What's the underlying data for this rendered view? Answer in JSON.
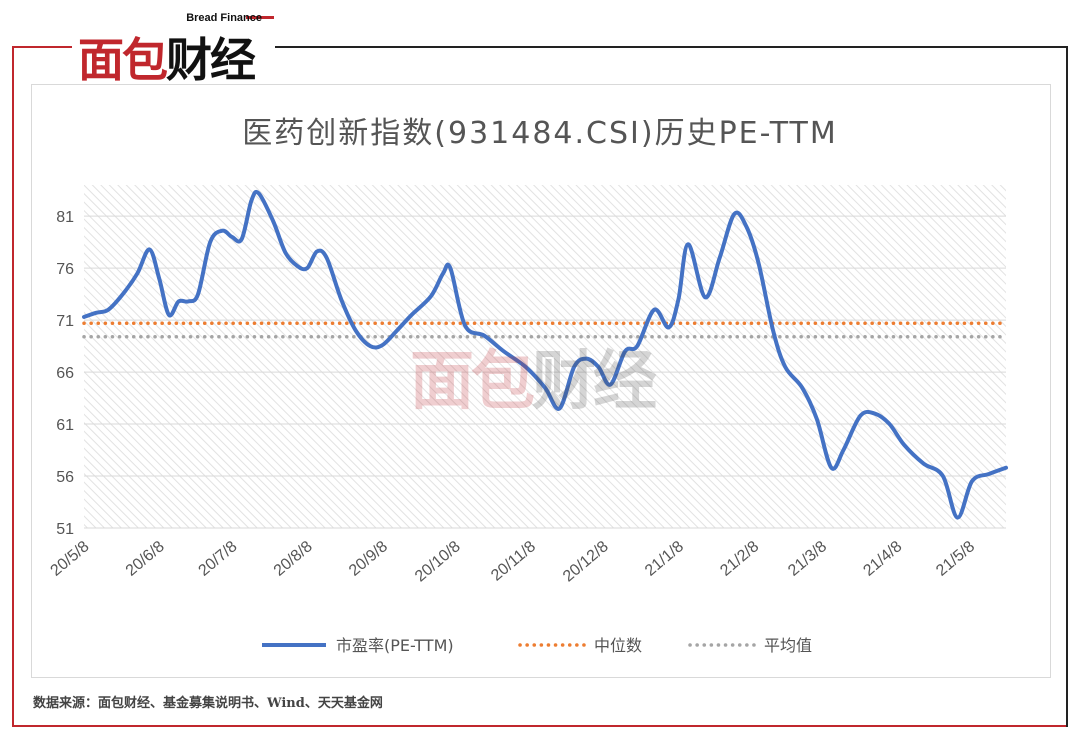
{
  "brand": {
    "logo_red": "面包",
    "logo_dark": "财经",
    "subtitle": "Bread Finance"
  },
  "chart_data": {
    "type": "line",
    "title": "医药创新指数(931484.CSI)历史PE-TTM",
    "ylim": [
      51,
      84
    ],
    "y_ticks": [
      51,
      56,
      61,
      66,
      71,
      76,
      81
    ],
    "x_ticks": [
      "20/5/8",
      "20/6/8",
      "20/7/8",
      "20/8/8",
      "20/9/8",
      "20/10/8",
      "20/11/8",
      "20/12/8",
      "21/1/8",
      "21/2/8",
      "21/3/8",
      "21/4/8",
      "21/5/8"
    ],
    "grid": true,
    "legend_position": "bottom",
    "series": [
      {
        "name": "市盈率(PE-TTM)",
        "style": "solid",
        "color": "#4472c4",
        "points": [
          [
            "2020-05-08",
            71.3
          ],
          [
            "2020-05-13",
            71.7
          ],
          [
            "2020-05-18",
            72.0
          ],
          [
            "2020-05-24",
            73.5
          ],
          [
            "2020-05-30",
            75.5
          ],
          [
            "2020-06-04",
            77.8
          ],
          [
            "2020-06-08",
            75.0
          ],
          [
            "2020-06-12",
            71.5
          ],
          [
            "2020-06-16",
            72.8
          ],
          [
            "2020-06-20",
            72.8
          ],
          [
            "2020-06-24",
            73.5
          ],
          [
            "2020-06-29",
            78.5
          ],
          [
            "2020-07-04",
            79.6
          ],
          [
            "2020-07-08",
            79.0
          ],
          [
            "2020-07-12",
            78.8
          ],
          [
            "2020-07-16",
            82.5
          ],
          [
            "2020-07-19",
            83.2
          ],
          [
            "2020-07-25",
            80.5
          ],
          [
            "2020-07-30",
            77.5
          ],
          [
            "2020-08-04",
            76.2
          ],
          [
            "2020-08-08",
            76.0
          ],
          [
            "2020-08-12",
            77.6
          ],
          [
            "2020-08-16",
            77.0
          ],
          [
            "2020-08-22",
            73.0
          ],
          [
            "2020-08-28",
            70.0
          ],
          [
            "2020-09-03",
            68.5
          ],
          [
            "2020-09-08",
            68.6
          ],
          [
            "2020-09-14",
            70.0
          ],
          [
            "2020-09-20",
            71.5
          ],
          [
            "2020-09-28",
            73.3
          ],
          [
            "2020-10-03",
            75.5
          ],
          [
            "2020-10-06",
            76.0
          ],
          [
            "2020-10-12",
            70.5
          ],
          [
            "2020-10-20",
            69.5
          ],
          [
            "2020-10-28",
            68.0
          ],
          [
            "2020-11-06",
            66.5
          ],
          [
            "2020-11-14",
            64.5
          ],
          [
            "2020-11-20",
            62.5
          ],
          [
            "2020-11-26",
            66.5
          ],
          [
            "2020-12-01",
            67.3
          ],
          [
            "2020-12-06",
            66.5
          ],
          [
            "2020-12-11",
            64.8
          ],
          [
            "2020-12-17",
            68.0
          ],
          [
            "2020-12-22",
            68.5
          ],
          [
            "2020-12-29",
            72.0
          ],
          [
            "2021-01-04",
            70.3
          ],
          [
            "2021-01-08",
            73.0
          ],
          [
            "2021-01-12",
            78.3
          ],
          [
            "2021-01-19",
            73.2
          ],
          [
            "2021-01-25",
            77.0
          ],
          [
            "2021-01-31",
            81.2
          ],
          [
            "2021-02-05",
            80.0
          ],
          [
            "2021-02-10",
            76.5
          ],
          [
            "2021-02-16",
            70.0
          ],
          [
            "2021-02-21",
            66.5
          ],
          [
            "2021-02-28",
            64.5
          ],
          [
            "2021-03-06",
            61.5
          ],
          [
            "2021-03-12",
            56.8
          ],
          [
            "2021-03-17",
            58.5
          ],
          [
            "2021-03-24",
            61.8
          ],
          [
            "2021-03-30",
            62.0
          ],
          [
            "2021-04-05",
            61.0
          ],
          [
            "2021-04-11",
            59.0
          ],
          [
            "2021-04-19",
            57.2
          ],
          [
            "2021-04-27",
            56.0
          ],
          [
            "2021-05-03",
            52.0
          ],
          [
            "2021-05-09",
            55.5
          ],
          [
            "2021-05-16",
            56.2
          ],
          [
            "2021-05-23",
            56.8
          ]
        ]
      },
      {
        "name": "中位数",
        "style": "dotted",
        "color": "#ed7d31",
        "value": 70.7
      },
      {
        "name": "平均值",
        "style": "dotted",
        "color": "#a5a5a5",
        "value": 69.4
      }
    ]
  },
  "source": "数据来源：面包财经、基金募集说明书、Wind、天天基金网"
}
